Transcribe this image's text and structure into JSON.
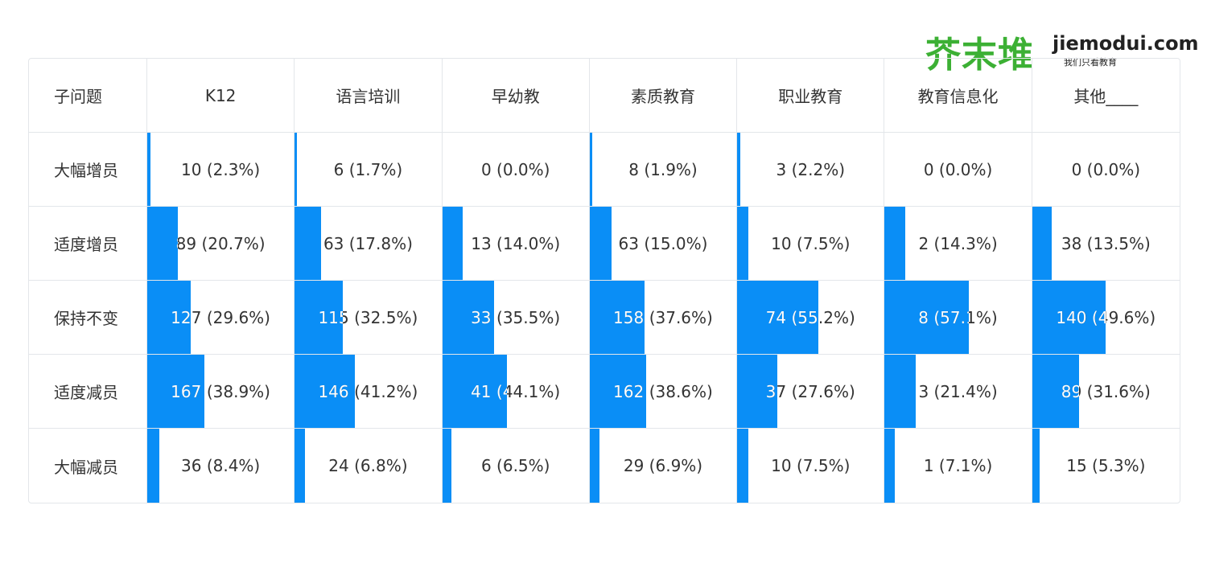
{
  "logo": {
    "name": "芥末堆",
    "domain": "jiemodui.com",
    "slogan": "我们只看教育"
  },
  "table": {
    "header": [
      "子问题",
      "K12",
      "语言培训",
      "早幼教",
      "素质教育",
      "职业教育",
      "教育信息化",
      "其他____"
    ],
    "rows": [
      {
        "label": "大幅增员",
        "cells": [
          {
            "value": 2.3,
            "label": "10 (2.3%)"
          },
          {
            "value": 1.7,
            "label": "6 (1.7%)"
          },
          {
            "value": 0.0,
            "label": "0 (0.0%)"
          },
          {
            "value": 1.9,
            "label": "8 (1.9%)"
          },
          {
            "value": 2.2,
            "label": "3 (2.2%)"
          },
          {
            "value": 0.0,
            "label": "0 (0.0%)"
          },
          {
            "value": 0.0,
            "label": "0 (0.0%)"
          }
        ]
      },
      {
        "label": "适度增员",
        "cells": [
          {
            "value": 20.7,
            "label": "89 (20.7%)"
          },
          {
            "value": 17.8,
            "label": "63 (17.8%)"
          },
          {
            "value": 14.0,
            "label": "13 (14.0%)"
          },
          {
            "value": 15.0,
            "label": "63 (15.0%)"
          },
          {
            "value": 7.5,
            "label": "10 (7.5%)"
          },
          {
            "value": 14.3,
            "label": "2 (14.3%)"
          },
          {
            "value": 13.5,
            "label": "38 (13.5%)"
          }
        ]
      },
      {
        "label": "保持不变",
        "cells": [
          {
            "value": 29.6,
            "label": "127 (29.6%)"
          },
          {
            "value": 32.5,
            "label": "115 (32.5%)"
          },
          {
            "value": 35.5,
            "label": "33 (35.5%)"
          },
          {
            "value": 37.6,
            "label": "158 (37.6%)"
          },
          {
            "value": 55.2,
            "label": "74 (55.2%)"
          },
          {
            "value": 57.1,
            "label": "8 (57.1%)"
          },
          {
            "value": 49.6,
            "label": "140 (49.6%)"
          }
        ]
      },
      {
        "label": "适度减员",
        "cells": [
          {
            "value": 38.9,
            "label": "167 (38.9%)"
          },
          {
            "value": 41.2,
            "label": "146 (41.2%)"
          },
          {
            "value": 44.1,
            "label": "41 (44.1%)"
          },
          {
            "value": 38.6,
            "label": "162 (38.6%)"
          },
          {
            "value": 27.6,
            "label": "37 (27.6%)"
          },
          {
            "value": 21.4,
            "label": "3 (21.4%)"
          },
          {
            "value": 31.6,
            "label": "89 (31.6%)"
          }
        ]
      },
      {
        "label": "大幅减员",
        "cells": [
          {
            "value": 8.4,
            "label": "36 (8.4%)"
          },
          {
            "value": 6.8,
            "label": "24 (6.8%)"
          },
          {
            "value": 6.5,
            "label": "6 (6.5%)"
          },
          {
            "value": 6.9,
            "label": "29 (6.9%)"
          },
          {
            "value": 7.5,
            "label": "10 (7.5%)"
          },
          {
            "value": 7.1,
            "label": "1 (7.1%)"
          },
          {
            "value": 5.3,
            "label": "15 (5.3%)"
          }
        ]
      }
    ]
  }
}
